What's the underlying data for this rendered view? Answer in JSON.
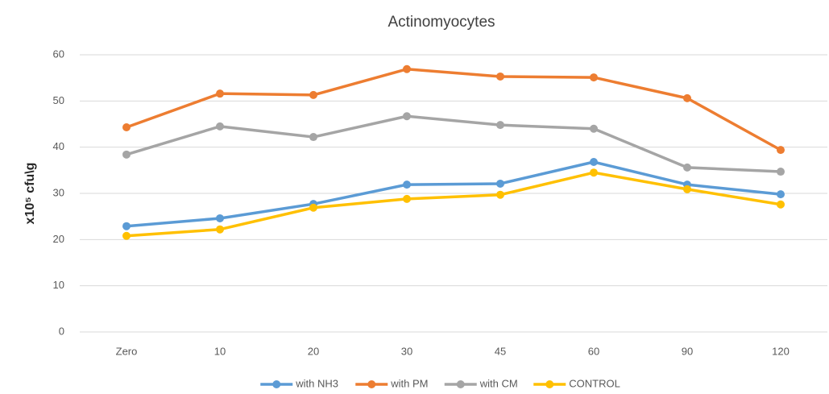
{
  "chart_data": {
    "type": "line",
    "title": "Actinomyocytes",
    "y_label": "x10⁵ cfu\\g",
    "categories": [
      "Zero",
      "10",
      "20",
      "30",
      "45",
      "60",
      "90",
      "120"
    ],
    "series": [
      {
        "name": "with NH3",
        "color": "#5b9bd5",
        "values": [
          22.9,
          24.6,
          27.7,
          31.9,
          32.1,
          36.8,
          31.9,
          29.8
        ]
      },
      {
        "name": "with PM",
        "color": "#ed7d31",
        "values": [
          44.3,
          51.6,
          51.3,
          56.9,
          55.3,
          55.1,
          50.6,
          39.4
        ]
      },
      {
        "name": "with CM",
        "color": "#a5a5a5",
        "values": [
          38.4,
          44.5,
          42.2,
          46.7,
          44.8,
          44.0,
          35.6,
          34.7
        ]
      },
      {
        "name": "CONTROL",
        "color": "#ffc000",
        "values": [
          20.8,
          22.2,
          26.9,
          28.8,
          29.7,
          34.5,
          30.9,
          27.6
        ]
      }
    ],
    "ylim": [
      0,
      60
    ],
    "yticks": [
      0,
      10,
      20,
      30,
      40,
      50,
      60
    ],
    "grid": true,
    "legend": "bottom"
  }
}
